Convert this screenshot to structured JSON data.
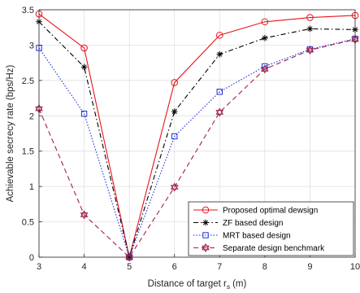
{
  "chart_data": {
    "type": "line",
    "title": "",
    "xlabel": "Distance of target r",
    "xlabel_subscript": "s",
    "xlabel_unit": "(m)",
    "ylabel": "Achievable secrecy rate (bps/Hz)",
    "x": [
      3,
      4,
      5,
      6,
      7,
      8,
      9,
      10
    ],
    "xlim": [
      3,
      10
    ],
    "ylim": [
      0,
      3.5
    ],
    "xticks": [
      "3",
      "4",
      "5",
      "6",
      "7",
      "8",
      "9",
      "10"
    ],
    "yticks": [
      "0",
      "0.5",
      "1",
      "1.5",
      "2",
      "2.5",
      "3",
      "3.5"
    ],
    "grid": true,
    "legend_position": "bottom-right",
    "series": [
      {
        "name": "Proposed optimal dewsign",
        "values": [
          3.44,
          2.96,
          0.0,
          2.47,
          3.14,
          3.33,
          3.39,
          3.42
        ],
        "color": "#e8141d",
        "dash": "solid",
        "marker": "circle"
      },
      {
        "name": "ZF based design",
        "values": [
          3.33,
          2.69,
          0.0,
          2.06,
          2.87,
          3.1,
          3.23,
          3.22
        ],
        "color": "#000000",
        "dash": "dashdot",
        "marker": "asterisk"
      },
      {
        "name": "MRT based design",
        "values": [
          2.96,
          2.03,
          0.0,
          1.71,
          2.34,
          2.7,
          2.94,
          3.09
        ],
        "color": "#1d2ed8",
        "dash": "dotted",
        "marker": "square"
      },
      {
        "name": "Separate design benchmark",
        "values": [
          2.1,
          0.6,
          0.0,
          0.99,
          2.05,
          2.66,
          2.93,
          3.08
        ],
        "color": "#a0204a",
        "dash": "dashed",
        "marker": "hexagram"
      }
    ]
  }
}
